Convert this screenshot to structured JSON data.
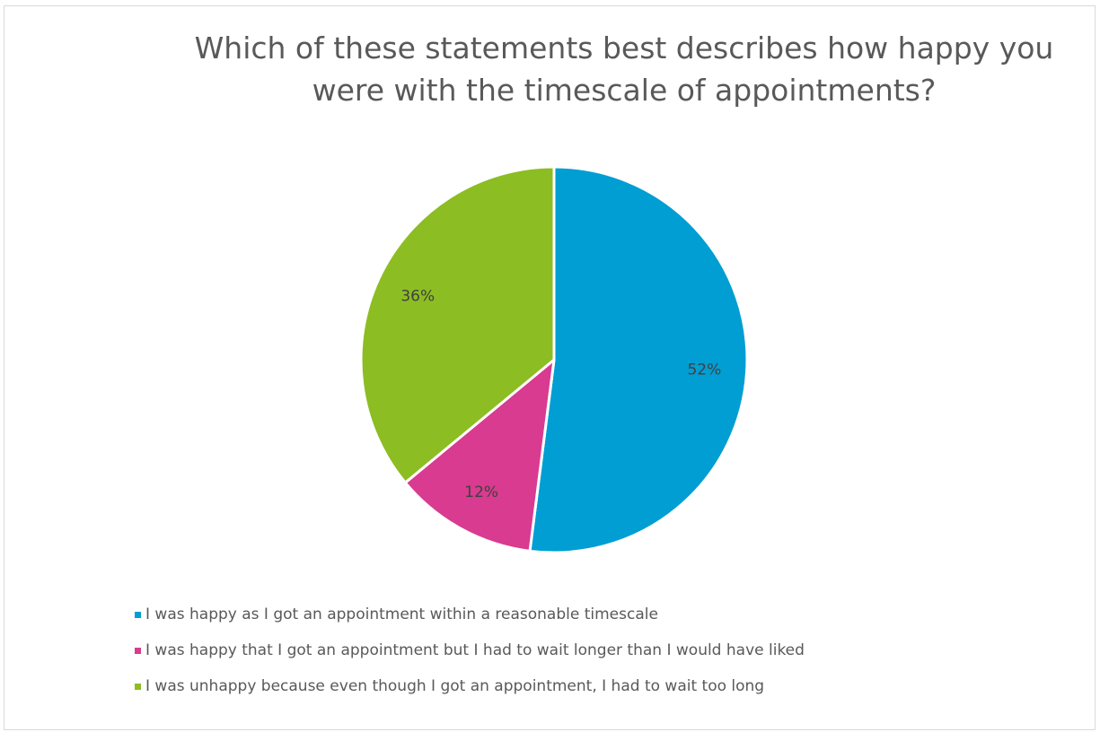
{
  "chart_data": {
    "type": "pie",
    "title": "Which of these statements best describes how happy you were with the timescale of appointments?",
    "categories": [
      "I was happy as I got an appointment within a reasonable timescale",
      "I was happy that I got an appointment but I had to wait longer than I would have liked",
      "I was unhappy because even though I got an appointment, I had to wait too long"
    ],
    "values": [
      52,
      12,
      36
    ],
    "data_labels": [
      "52%",
      "12%",
      "36%"
    ],
    "colors": [
      "#009ed2",
      "#d83b8f",
      "#8cbd22"
    ],
    "legend_position": "bottom-left"
  }
}
